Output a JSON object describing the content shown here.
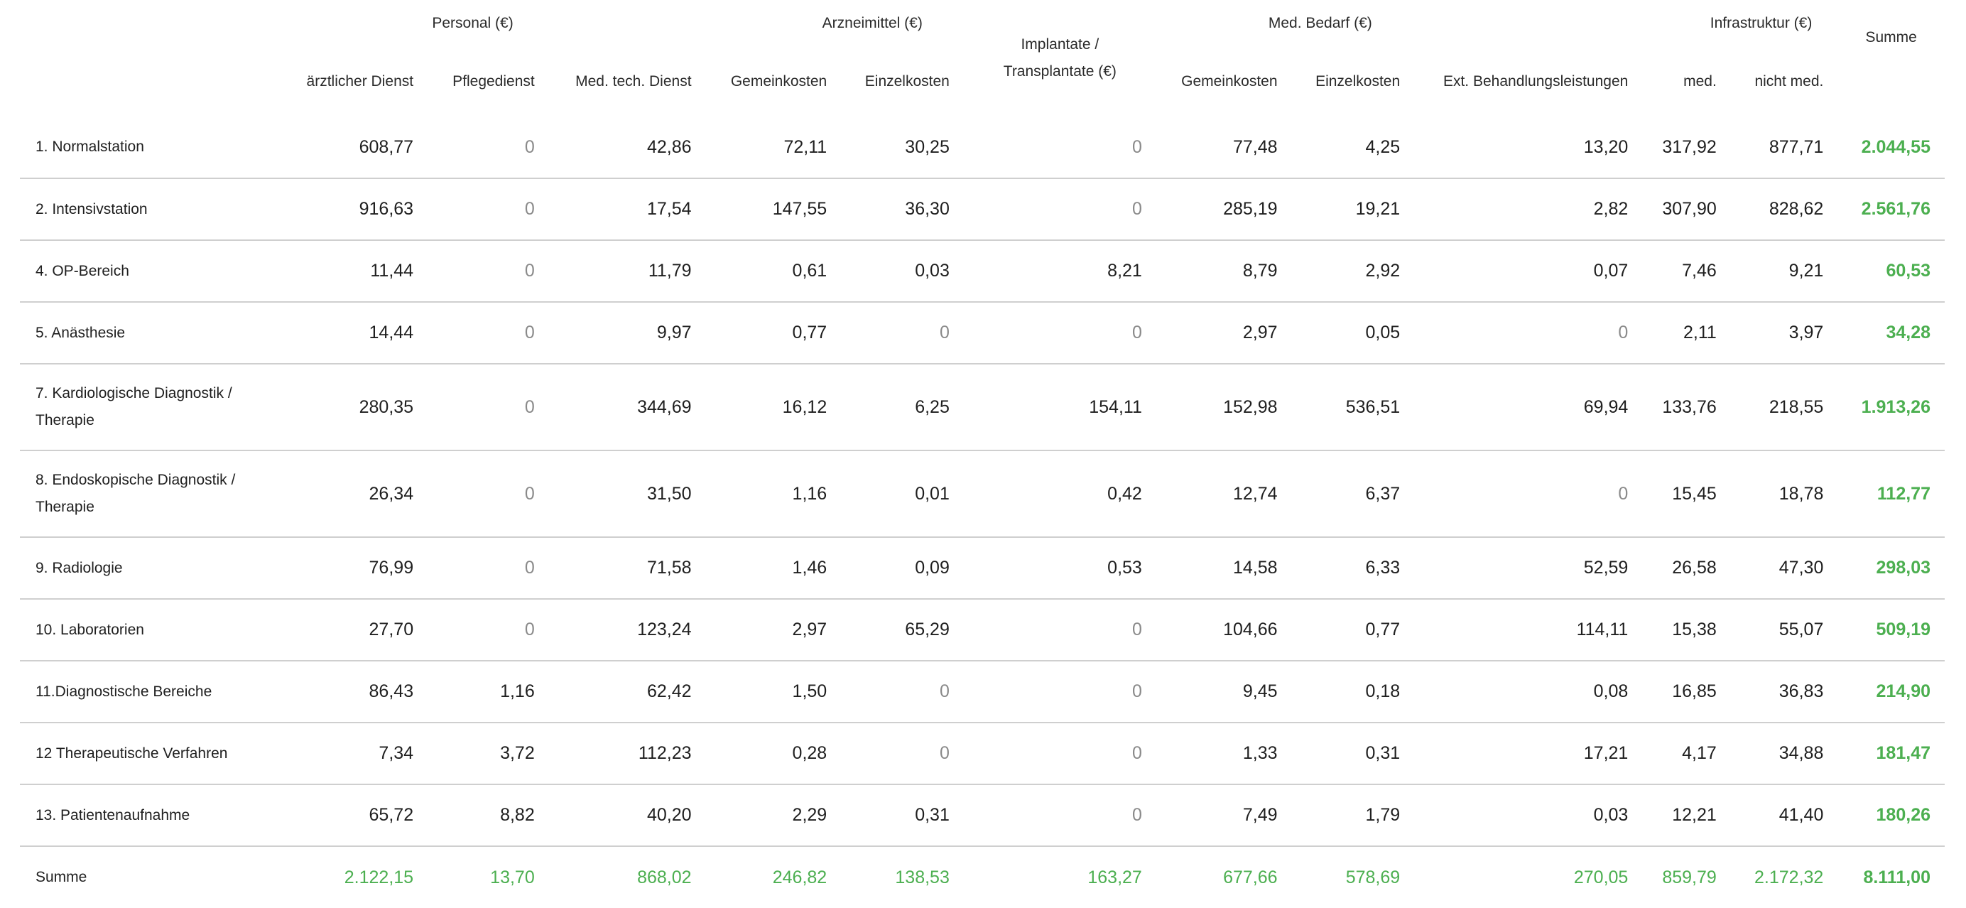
{
  "header": {
    "groups": {
      "personal": "Personal (€)",
      "arzneimittel": "Arzneimittel (€)",
      "implantate": "Implantate / Transplantate (€)",
      "med_bedarf": "Med. Bedarf (€)",
      "infrastruktur": "Infrastruktur (€)",
      "summe": "Summe"
    },
    "columns": [
      "ärztlicher Dienst",
      "Pflegedienst",
      "Med. tech. Dienst",
      "Gemeinkosten",
      "Einzelkosten",
      "Gemeinkosten",
      "Einzelkosten",
      "Ext. Behandlungsleistungen",
      "med.",
      "nicht med."
    ]
  },
  "rows": [
    {
      "label": "1. Normalstation",
      "values": [
        "608,77",
        "0",
        "42,86",
        "72,11",
        "30,25",
        "0",
        "77,48",
        "4,25",
        "13,20",
        "317,92",
        "877,71"
      ],
      "sum": "2.044,55"
    },
    {
      "label": "2. Intensivstation",
      "values": [
        "916,63",
        "0",
        "17,54",
        "147,55",
        "36,30",
        "0",
        "285,19",
        "19,21",
        "2,82",
        "307,90",
        "828,62"
      ],
      "sum": "2.561,76"
    },
    {
      "label": "4. OP-Bereich",
      "values": [
        "11,44",
        "0",
        "11,79",
        "0,61",
        "0,03",
        "8,21",
        "8,79",
        "2,92",
        "0,07",
        "7,46",
        "9,21"
      ],
      "sum": "60,53"
    },
    {
      "label": "5. Anästhesie",
      "values": [
        "14,44",
        "0",
        "9,97",
        "0,77",
        "0",
        "0",
        "2,97",
        "0,05",
        "0",
        "2,11",
        "3,97"
      ],
      "sum": "34,28"
    },
    {
      "label": "7. Kardiologische Diagnostik / Therapie",
      "values": [
        "280,35",
        "0",
        "344,69",
        "16,12",
        "6,25",
        "154,11",
        "152,98",
        "536,51",
        "69,94",
        "133,76",
        "218,55"
      ],
      "sum": "1.913,26"
    },
    {
      "label": "8. Endoskopische Diagnostik / Therapie",
      "values": [
        "26,34",
        "0",
        "31,50",
        "1,16",
        "0,01",
        "0,42",
        "12,74",
        "6,37",
        "0",
        "15,45",
        "18,78"
      ],
      "sum": "112,77"
    },
    {
      "label": "9. Radiologie",
      "values": [
        "76,99",
        "0",
        "71,58",
        "1,46",
        "0,09",
        "0,53",
        "14,58",
        "6,33",
        "52,59",
        "26,58",
        "47,30"
      ],
      "sum": "298,03"
    },
    {
      "label": "10. Laboratorien",
      "values": [
        "27,70",
        "0",
        "123,24",
        "2,97",
        "65,29",
        "0",
        "104,66",
        "0,77",
        "114,11",
        "15,38",
        "55,07"
      ],
      "sum": "509,19"
    },
    {
      "label": "11.Diagnostische Bereiche",
      "values": [
        "86,43",
        "1,16",
        "62,42",
        "1,50",
        "0",
        "0",
        "9,45",
        "0,18",
        "0,08",
        "16,85",
        "36,83"
      ],
      "sum": "214,90"
    },
    {
      "label": "12 Therapeutische Verfahren",
      "values": [
        "7,34",
        "3,72",
        "112,23",
        "0,28",
        "0",
        "0",
        "1,33",
        "0,31",
        "17,21",
        "4,17",
        "34,88"
      ],
      "sum": "181,47"
    },
    {
      "label": "13. Patientenaufnahme",
      "values": [
        "65,72",
        "8,82",
        "40,20",
        "2,29",
        "0,31",
        "0",
        "7,49",
        "1,79",
        "0,03",
        "12,21",
        "41,40"
      ],
      "sum": "180,26"
    }
  ],
  "total": {
    "label": "Summe",
    "values": [
      "2.122,15",
      "13,70",
      "868,02",
      "246,82",
      "138,53",
      "163,27",
      "677,66",
      "578,69",
      "270,05",
      "859,79",
      "2.172,32"
    ],
    "sum": "8.111,00"
  },
  "colors": {
    "accent_green": "#4caf50",
    "zero_gray": "#8a8a8a",
    "divider": "#cfcfcf"
  }
}
